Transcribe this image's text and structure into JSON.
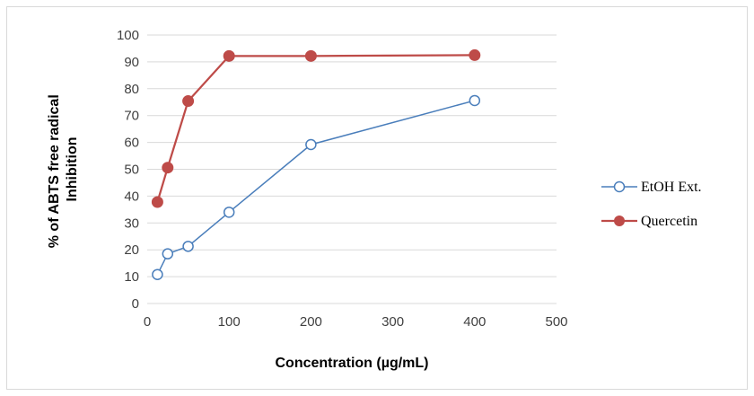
{
  "chart_data": {
    "type": "line",
    "title": "",
    "xlabel": "Concentration (µg/mL)",
    "ylabel_lines": [
      "% of ABTS free radical",
      "Inhibition"
    ],
    "xlim": [
      0,
      500
    ],
    "ylim": [
      0,
      100
    ],
    "x_ticks": [
      0,
      100,
      200,
      300,
      400,
      500
    ],
    "y_ticks": [
      0,
      10,
      20,
      30,
      40,
      50,
      60,
      70,
      80,
      90,
      100
    ],
    "grid": "horizontal",
    "legend_position": "right",
    "series": [
      {
        "name": "EtOH Ext.",
        "color": "#4a7ebb",
        "marker": "open-circle",
        "x": [
          12.5,
          25,
          50,
          100,
          200,
          400
        ],
        "y": [
          10.8,
          18.5,
          21.3,
          34.0,
          59.2,
          75.6
        ]
      },
      {
        "name": "Quercetin",
        "color": "#be4b48",
        "marker": "filled-circle",
        "x": [
          12.5,
          25,
          50,
          100,
          200,
          400
        ],
        "y": [
          37.8,
          50.6,
          75.4,
          92.2,
          92.2,
          92.5
        ]
      }
    ]
  }
}
